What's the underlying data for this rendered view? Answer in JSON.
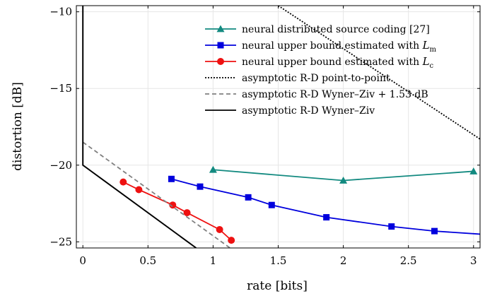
{
  "chart_data": {
    "type": "line",
    "title": "",
    "xlabel": "rate [bits]",
    "ylabel": "distortion [dB]",
    "xlim": [
      -0.05,
      3.05
    ],
    "ylim": [
      -25.4,
      -9.6
    ],
    "xticks": [
      0,
      0.5,
      1,
      1.5,
      2,
      2.5,
      3
    ],
    "xtick_labels": [
      "0",
      "0.5",
      "1",
      "1.5",
      "2",
      "2.5",
      "3"
    ],
    "yticks": [
      -10,
      -15,
      -20,
      -25
    ],
    "ytick_labels": [
      "−10",
      "−15",
      "−20",
      "−25"
    ],
    "grid": true,
    "legend_position": "top-right",
    "series": [
      {
        "name": "neural distributed source coding [27]",
        "color": "#138a80",
        "marker": "triangle",
        "style": "solid",
        "x": [
          1.0,
          2.0,
          3.0
        ],
        "y": [
          -20.3,
          -21.0,
          -20.4
        ]
      },
      {
        "name": "neural upper bound estimated with ",
        "name_sub": "m",
        "color": "#0000dd",
        "marker": "square",
        "style": "solid",
        "x": [
          0.68,
          0.9,
          1.27,
          1.45,
          1.87,
          2.37,
          2.7
        ],
        "y": [
          -20.9,
          -21.4,
          -22.1,
          -22.6,
          -23.4,
          -24.0,
          -24.3
        ],
        "tail_x": 3.05,
        "tail_y": -24.5
      },
      {
        "name": "neural upper bound estimated with ",
        "name_sub": "c",
        "color": "#ee1111",
        "marker": "circle",
        "style": "solid",
        "x": [
          0.31,
          0.43,
          0.69,
          0.8,
          1.05,
          1.14
        ],
        "y": [
          -21.1,
          -21.6,
          -22.6,
          -23.1,
          -24.2,
          -24.9
        ]
      },
      {
        "name": "asymptotic R-D point-to-point",
        "color": "#000000",
        "marker": "none",
        "style": "dotted",
        "x": [
          1.5,
          3.05
        ],
        "y": [
          -9.6,
          -18.3
        ]
      },
      {
        "name": "asymptotic R-D Wyner–Ziv + 1.53 dB",
        "color": "#808080",
        "marker": "none",
        "style": "dashed",
        "x": [
          0.0,
          1.13
        ],
        "y": [
          -18.5,
          -25.4
        ]
      },
      {
        "name": "asymptotic R-D Wyner–Ziv",
        "color": "#000000",
        "marker": "none",
        "style": "solid",
        "x": [
          0.0,
          0.0,
          0.87
        ],
        "y": [
          -9.6,
          -20.0,
          -25.4
        ]
      }
    ]
  }
}
